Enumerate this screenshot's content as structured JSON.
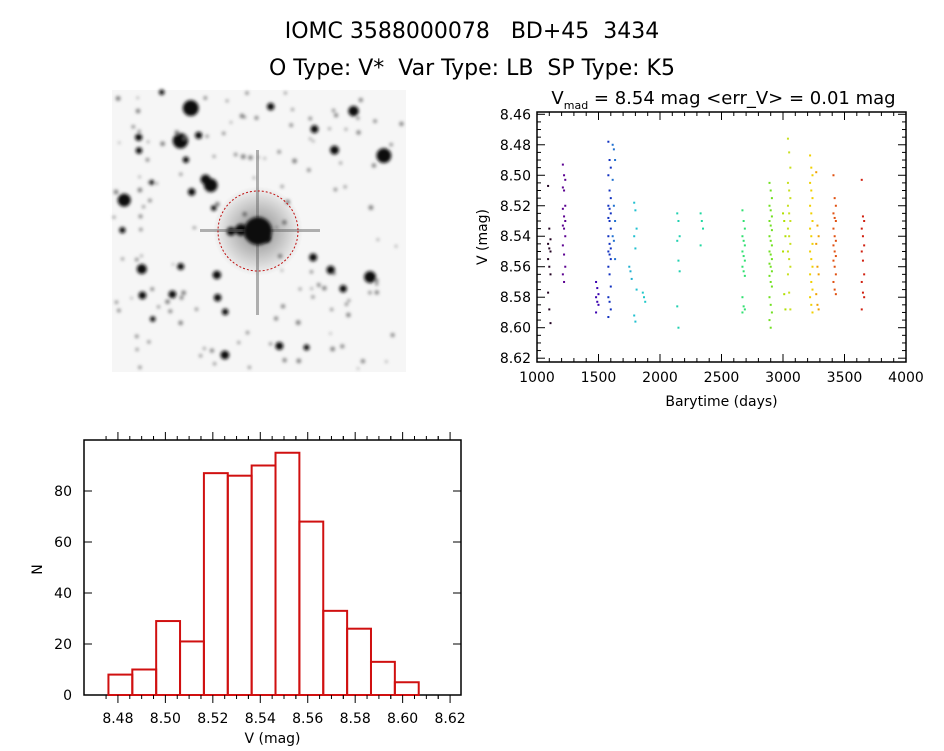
{
  "header": {
    "title": "IOMC 3588000078   BD+45  3434",
    "subtitle": "O Type: V*  Var Type: LB  SP Type: K5"
  },
  "chart_data": [
    {
      "type": "scatter",
      "title_main": "V",
      "title_sub": "mad",
      "title_rest": " = 8.54 mag <err_V> = 0.01 mag",
      "xlabel": "Barytime (days)",
      "ylabel": "V (mag)",
      "xlim": [
        1000,
        4000
      ],
      "ylim": [
        8.4585,
        8.6225
      ],
      "y_inverted": true,
      "xticks": [
        "1000",
        "1500",
        "2000",
        "2500",
        "3000",
        "3500",
        "4000"
      ],
      "yticks": [
        "8.46",
        "8.48",
        "8.50",
        "8.52",
        "8.54",
        "8.56",
        "8.58",
        "8.60",
        "8.62"
      ],
      "clusters": [
        {
          "x": 1100,
          "color": "#200020",
          "mags": [
            8.507,
            8.535,
            8.542,
            8.545,
            8.548,
            8.55,
            8.555,
            8.56,
            8.565,
            8.577,
            8.588,
            8.597
          ]
        },
        {
          "x": 1220,
          "color": "#5a0090",
          "mags": [
            8.493,
            8.5,
            8.503,
            8.508,
            8.51,
            8.52,
            8.522,
            8.527,
            8.53,
            8.533,
            8.535,
            8.54,
            8.546,
            8.552,
            8.56,
            8.565,
            8.57
          ]
        },
        {
          "x": 1490,
          "color": "#3a00b0",
          "mags": [
            8.57,
            8.574,
            8.578,
            8.58,
            8.583,
            8.585,
            8.59
          ]
        },
        {
          "x": 1590,
          "color": "#1030c0",
          "mags": [
            8.478,
            8.49,
            8.495,
            8.5,
            8.51,
            8.515,
            8.52,
            8.522,
            8.525,
            8.528,
            8.53,
            8.535,
            8.54,
            8.545,
            8.548,
            8.55,
            8.552,
            8.555,
            8.56,
            8.565,
            8.573,
            8.58,
            8.583,
            8.588,
            8.593
          ]
        },
        {
          "x": 1625,
          "color": "#2070d0",
          "mags": [
            8.48,
            8.483,
            8.49,
            8.503,
            8.52,
            8.53,
            8.54,
            8.543,
            8.555
          ]
        },
        {
          "x": 1760,
          "color": "#20b0d0",
          "mags": [
            8.56,
            8.563,
            8.568
          ]
        },
        {
          "x": 1800,
          "color": "#20c0d0",
          "mags": [
            8.518,
            8.523,
            8.535,
            8.54,
            8.548,
            8.575,
            8.592,
            8.596
          ]
        },
        {
          "x": 1870,
          "color": "#20c8c8",
          "mags": [
            8.577,
            8.58,
            8.583
          ]
        },
        {
          "x": 2150,
          "color": "#20d0b0",
          "mags": [
            8.525,
            8.53,
            8.54,
            8.543,
            8.556,
            8.563,
            8.586,
            8.6
          ]
        },
        {
          "x": 2340,
          "color": "#20d8a0",
          "mags": [
            8.525,
            8.53,
            8.535,
            8.546
          ]
        },
        {
          "x": 2680,
          "color": "#30e070",
          "mags": [
            8.523,
            8.53,
            8.535,
            8.54,
            8.543,
            8.546,
            8.55,
            8.553,
            8.556,
            8.56,
            8.563,
            8.566,
            8.58,
            8.586,
            8.588,
            8.59
          ]
        },
        {
          "x": 2900,
          "color": "#70e020",
          "mags": [
            8.505,
            8.51,
            8.515,
            8.52,
            8.523,
            8.527,
            8.53,
            8.533,
            8.536,
            8.54,
            8.543,
            8.546,
            8.55,
            8.552,
            8.555,
            8.558,
            8.56,
            8.563,
            8.566,
            8.57,
            8.573,
            8.58,
            8.585,
            8.59,
            8.595,
            8.6
          ]
        },
        {
          "x": 3010,
          "color": "#b0e000",
          "mags": [
            8.525,
            8.53,
            8.54,
            8.55,
            8.578,
            8.588
          ]
        },
        {
          "x": 3050,
          "color": "#c8e020",
          "mags": [
            8.476,
            8.485,
            8.495,
            8.505,
            8.51,
            8.515,
            8.52,
            8.525,
            8.53,
            8.535,
            8.54,
            8.545,
            8.55,
            8.555,
            8.56,
            8.565,
            8.577,
            8.588
          ]
        },
        {
          "x": 3230,
          "color": "#f0d000",
          "mags": [
            8.487,
            8.495,
            8.5,
            8.505,
            8.51,
            8.515,
            8.52,
            8.525,
            8.53,
            8.535,
            8.54,
            8.545,
            8.55,
            8.555,
            8.56,
            8.565,
            8.57,
            8.575,
            8.58,
            8.585,
            8.59
          ]
        },
        {
          "x": 3280,
          "color": "#f0a000",
          "mags": [
            8.498,
            8.533,
            8.54,
            8.545,
            8.56,
            8.565,
            8.578,
            8.585,
            8.588
          ]
        },
        {
          "x": 3420,
          "color": "#e05010",
          "mags": [
            8.5,
            8.515,
            8.52,
            8.525,
            8.528,
            8.53,
            8.535,
            8.54,
            8.543,
            8.546,
            8.55,
            8.553,
            8.556,
            8.56,
            8.565,
            8.57,
            8.575,
            8.578
          ]
        },
        {
          "x": 3650,
          "color": "#d02010",
          "mags": [
            8.503,
            8.527,
            8.53,
            8.535,
            8.54,
            8.546,
            8.55,
            8.556,
            8.565,
            8.57,
            8.577,
            8.58,
            8.588
          ]
        }
      ]
    },
    {
      "type": "bar",
      "subtype": "histogram",
      "xlabel": "V (mag)",
      "ylabel": "N",
      "xlim": [
        8.4657,
        8.6246
      ],
      "ylim": [
        0,
        100
      ],
      "bar_color": "#d01010",
      "bin_start": 8.476,
      "bin_width": 0.01006,
      "values": [
        8,
        10,
        29,
        21,
        87,
        86,
        90,
        95,
        68,
        33,
        26,
        13,
        5
      ],
      "xticks": [
        "8.48",
        "8.50",
        "8.52",
        "8.54",
        "8.56",
        "8.58",
        "8.60",
        "8.62"
      ],
      "yticks": [
        "0",
        "20",
        "40",
        "60",
        "80"
      ]
    }
  ]
}
